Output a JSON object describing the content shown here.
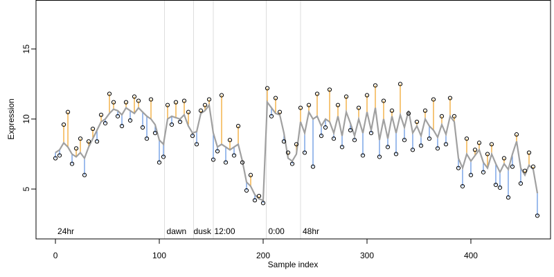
{
  "chart_data": {
    "type": "scatter",
    "xlabel": "Sample index",
    "ylabel": "Expression",
    "xlim": [
      -18.7,
      476.7
    ],
    "ylim": [
      1.44,
      18.5
    ],
    "xticks": [
      0,
      100,
      200,
      300,
      400
    ],
    "yticks": [
      5,
      10,
      15
    ],
    "line_color": "#a0a0a0",
    "above_color": "#f0a020",
    "below_color": "#5b8fe0",
    "vline_color": "#dddddd",
    "annotation_color": "#aaaaaa",
    "vlines": [
      105,
      133,
      152,
      203,
      236
    ],
    "annotations": [
      {
        "label": "24hr",
        "x": 2
      },
      {
        "label": "dawn",
        "x": 107
      },
      {
        "label": "dusk",
        "x": 133
      },
      {
        "label": "12:00",
        "x": 153
      },
      {
        "label": "0:00",
        "x": 205
      },
      {
        "label": "48hr",
        "x": 238
      }
    ],
    "x": [
      0,
      4,
      8,
      12,
      16,
      20,
      24,
      28,
      32,
      36,
      40,
      44,
      48,
      52,
      56,
      60,
      64,
      68,
      72,
      76,
      80,
      84,
      88,
      92,
      96,
      100,
      104,
      108,
      112,
      116,
      120,
      124,
      128,
      132,
      136,
      140,
      144,
      148,
      152,
      156,
      160,
      164,
      168,
      172,
      176,
      180,
      184,
      188,
      192,
      196,
      200,
      204,
      208,
      212,
      216,
      220,
      224,
      228,
      232,
      236,
      240,
      244,
      248,
      252,
      256,
      260,
      264,
      268,
      272,
      276,
      280,
      284,
      288,
      292,
      296,
      300,
      304,
      308,
      312,
      316,
      320,
      324,
      328,
      332,
      336,
      340,
      344,
      348,
      352,
      356,
      360,
      364,
      368,
      372,
      376,
      380,
      384,
      388,
      392,
      396,
      400,
      404,
      408,
      412,
      416,
      420,
      424,
      428,
      432,
      436,
      440,
      444,
      448,
      452,
      456,
      460,
      464
    ],
    "fitted": [
      7.6,
      7.8,
      8.3,
      8.0,
      7.5,
      7.3,
      7.6,
      7.2,
      8.0,
      8.6,
      9.2,
      9.8,
      10.0,
      10.4,
      10.7,
      10.6,
      10.3,
      10.8,
      10.6,
      10.4,
      10.8,
      10.5,
      10.2,
      10.0,
      9.6,
      8.5,
      8.2,
      10.0,
      10.2,
      10.1,
      10.0,
      10.3,
      9.5,
      9.0,
      9.1,
      10.4,
      10.6,
      11.0,
      9.0,
      8.0,
      8.2,
      8.0,
      7.8,
      8.0,
      8.2,
      7.0,
      5.5,
      5.2,
      4.6,
      4.3,
      4.2,
      11.2,
      10.8,
      10.4,
      10.3,
      9.0,
      7.2,
      7.0,
      7.5,
      9.8,
      9.0,
      10.5,
      10.0,
      10.2,
      9.5,
      10.0,
      9.8,
      9.0,
      10.2,
      8.8,
      10.5,
      9.7,
      8.8,
      10.0,
      9.0,
      10.5,
      9.2,
      10.8,
      8.5,
      10.0,
      8.6,
      10.2,
      9.0,
      10.3,
      9.4,
      10.6,
      9.0,
      9.5,
      8.8,
      10.0,
      9.5,
      9.2,
      8.7,
      9.6,
      8.9,
      10.2,
      9.8,
      7.2,
      6.5,
      7.5,
      7.0,
      7.4,
      7.8,
      6.9,
      6.5,
      7.5,
      6.8,
      6.2,
      6.8,
      6.4,
      7.5,
      8.4,
      6.5,
      6.0,
      6.7,
      6.4,
      4.7
    ],
    "observed": [
      7.2,
      7.4,
      9.6,
      10.5,
      6.8,
      7.9,
      8.6,
      6.0,
      8.4,
      9.3,
      8.4,
      10.3,
      9.7,
      11.8,
      11.2,
      10.2,
      9.5,
      11.2,
      9.9,
      11.6,
      11.3,
      9.4,
      8.6,
      11.4,
      9.0,
      6.9,
      7.3,
      11.0,
      9.6,
      11.2,
      9.8,
      11.3,
      10.5,
      8.8,
      8.2,
      10.6,
      11.0,
      11.4,
      7.1,
      7.7,
      11.7,
      6.9,
      8.5,
      7.4,
      9.5,
      6.9,
      4.9,
      6.0,
      4.2,
      4.5,
      4.0,
      12.2,
      10.2,
      11.5,
      10.5,
      8.4,
      7.6,
      6.8,
      8.2,
      10.8,
      7.6,
      11.0,
      6.6,
      11.8,
      8.8,
      9.4,
      12.1,
      8.6,
      11.0,
      8.0,
      11.6,
      9.2,
      8.5,
      10.8,
      7.4,
      11.7,
      9.0,
      12.4,
      7.3,
      11.3,
      8.0,
      10.6,
      7.5,
      12.5,
      8.5,
      10.4,
      7.8,
      9.8,
      8.1,
      10.6,
      8.6,
      11.4,
      7.9,
      10.2,
      8.2,
      11.5,
      10.2,
      6.5,
      5.2,
      8.6,
      6.0,
      7.8,
      8.3,
      6.2,
      7.5,
      8.2,
      5.3,
      5.1,
      7.2,
      4.4,
      6.6,
      8.9,
      5.4,
      6.3,
      7.6,
      6.6,
      3.1
    ]
  }
}
